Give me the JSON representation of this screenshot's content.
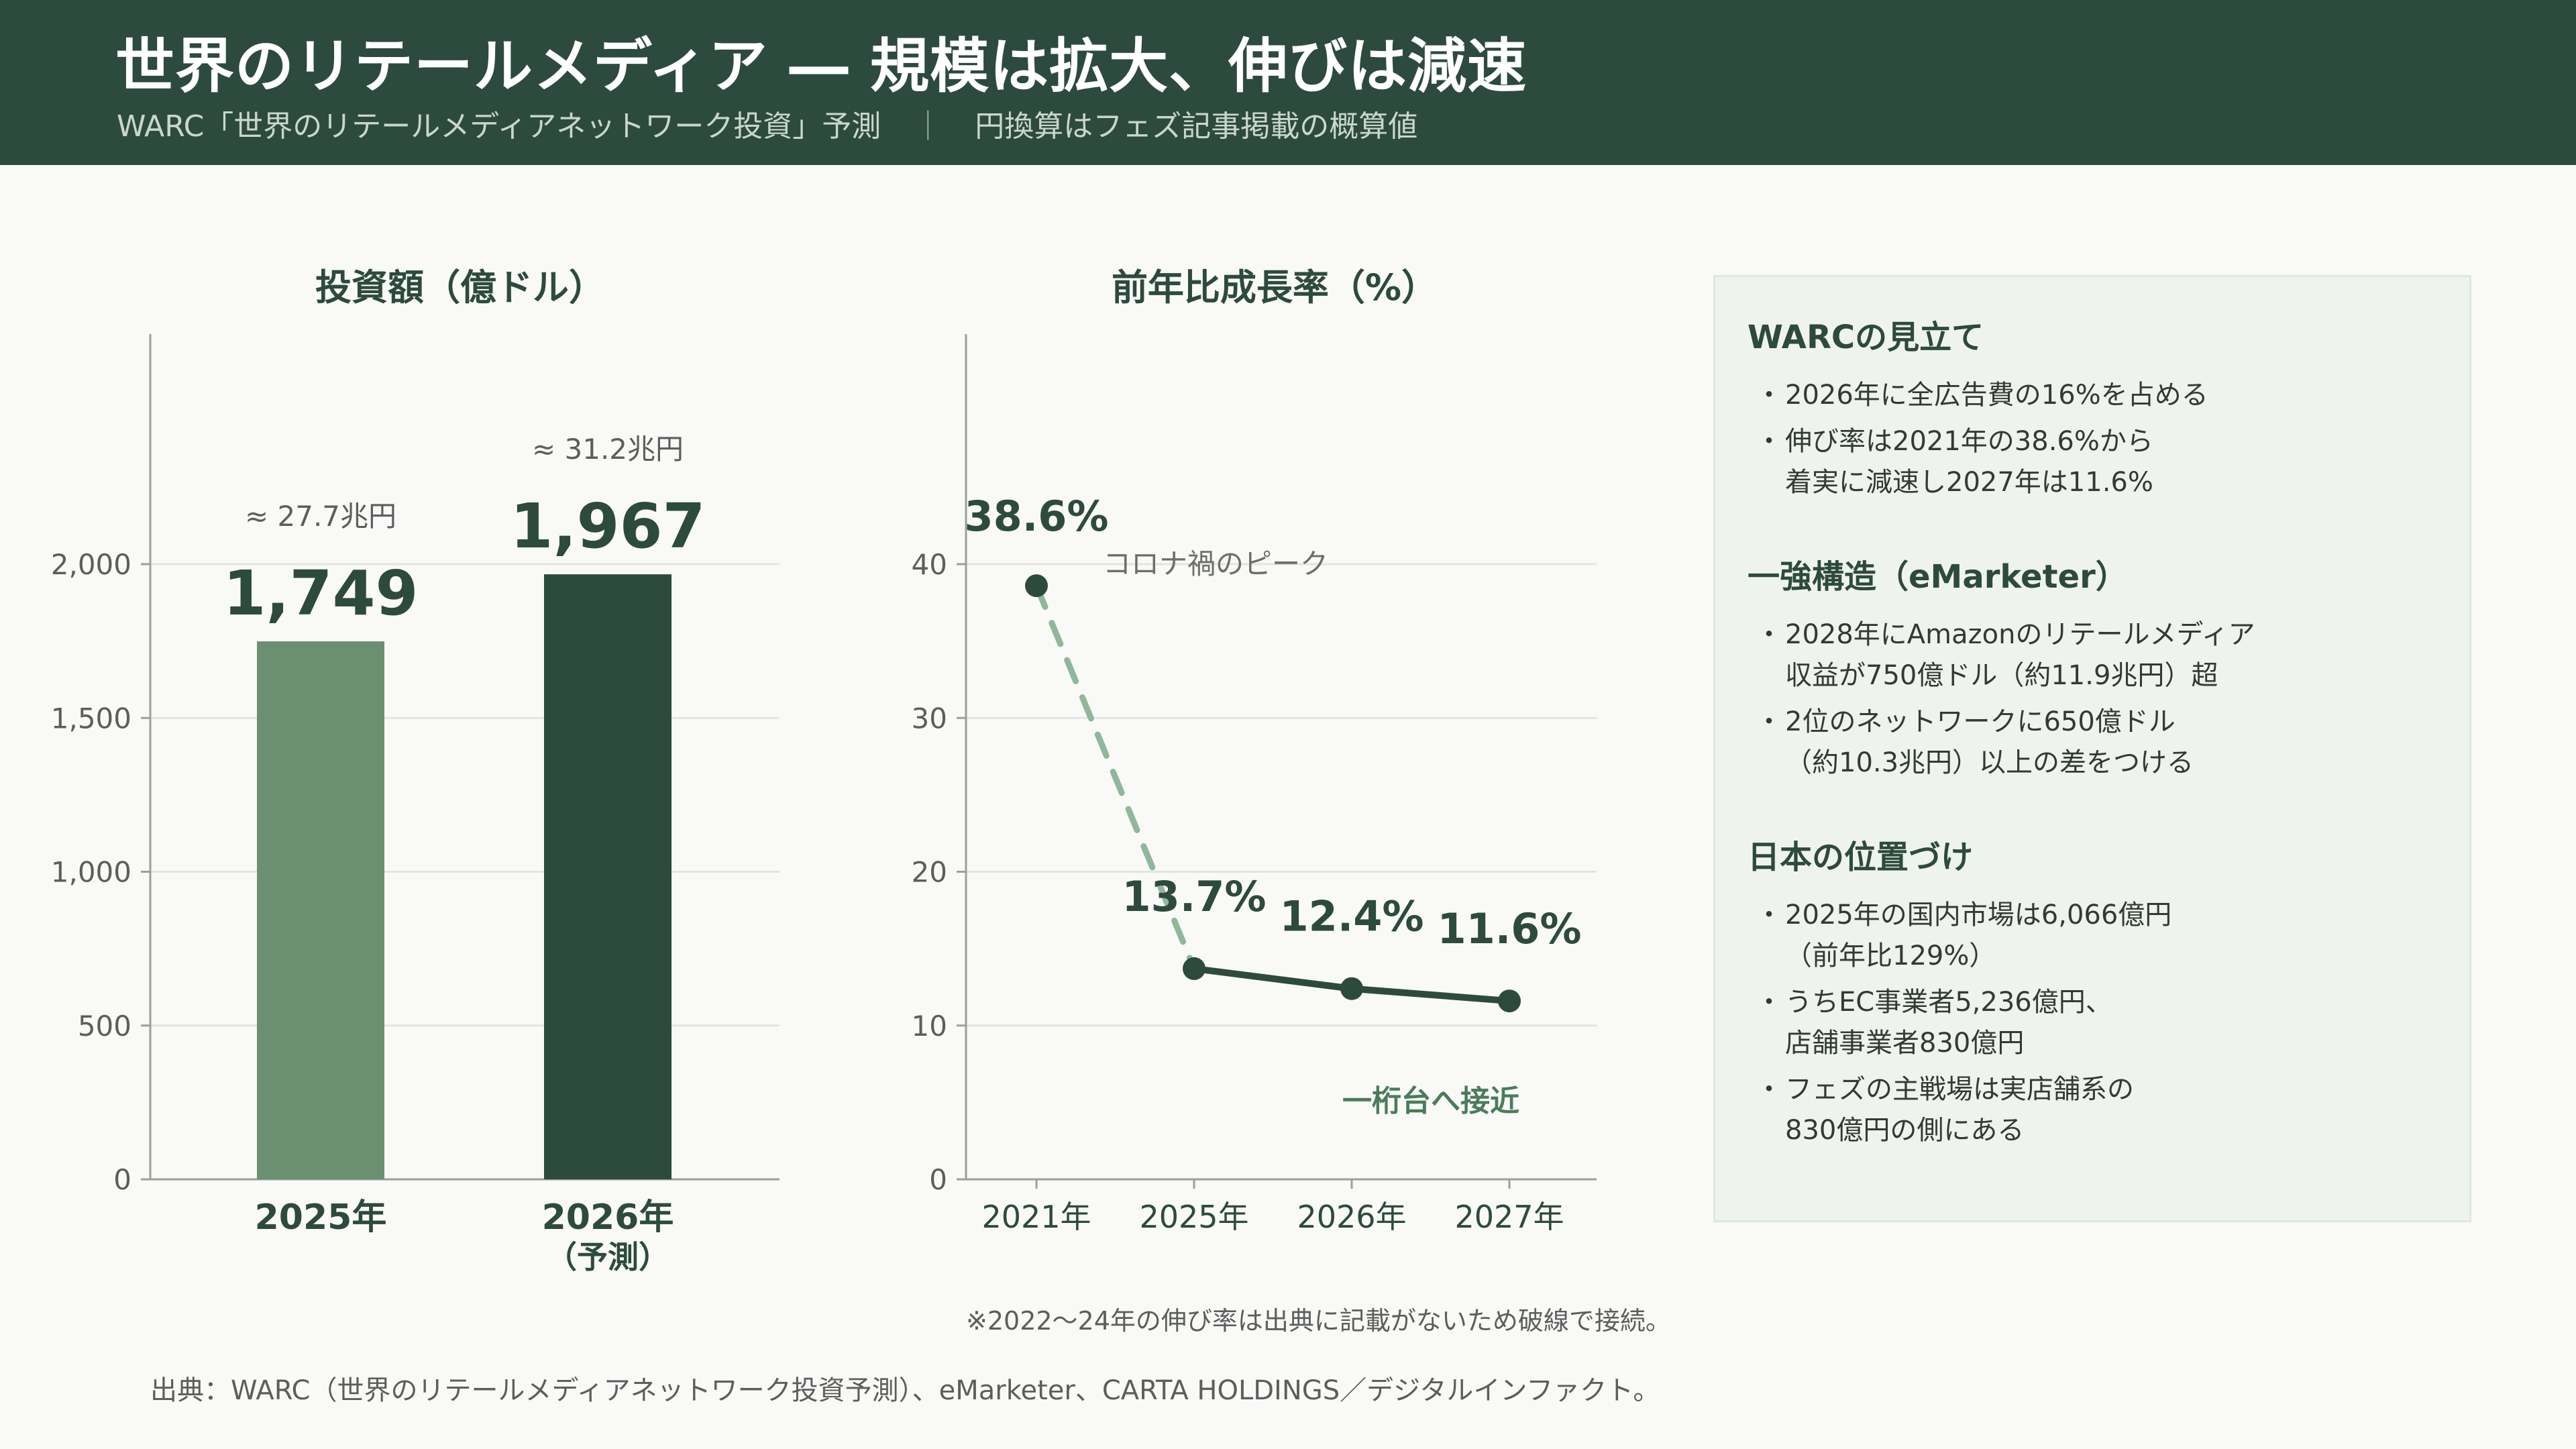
{
  "header": {
    "title": "世界のリテールメディア ― 規模は拡大、伸びは減速",
    "subtitle_left": "WARC「世界のリテールメディアネットワーク投資」予測",
    "subtitle_sep": "｜",
    "subtitle_right": "円換算はフェズ記事掲載の概算値"
  },
  "colors": {
    "header_bg": "#2d4a3e",
    "bar_2025": "#6b8f71",
    "bar_2026": "#2d4a3e",
    "line_solid": "#2d4a3e",
    "line_dashed": "#8fb79a",
    "accent_text": "#4a7c59",
    "panel_bg": "#eff3ef"
  },
  "chart_data": [
    {
      "type": "bar",
      "title": "投資額（億ドル）",
      "categories": [
        "2025年",
        "2026年"
      ],
      "category_sublabels": [
        "",
        "（予測）"
      ],
      "values": [
        1749,
        1967
      ],
      "value_labels": [
        "1,749",
        "1,967"
      ],
      "yen_labels": [
        "≈ 27.7兆円",
        "≈ 31.2兆円"
      ],
      "ylim": [
        0,
        2000
      ],
      "yticks": [
        0,
        500,
        1000,
        1500,
        2000
      ],
      "ytick_labels": [
        "0",
        "500",
        "1,000",
        "1,500",
        "2,000"
      ],
      "grid": true
    },
    {
      "type": "line",
      "title": "前年比成長率（%）",
      "x": [
        "2021年",
        "2025年",
        "2026年",
        "2027年"
      ],
      "values": [
        38.6,
        13.7,
        12.4,
        11.6
      ],
      "value_labels": [
        "38.6%",
        "13.7%",
        "12.4%",
        "11.6%"
      ],
      "segment_styles": [
        "dashed",
        "solid",
        "solid"
      ],
      "ylim": [
        0,
        40
      ],
      "yticks": [
        0,
        10,
        20,
        30,
        40
      ],
      "ytick_labels": [
        "0",
        "10",
        "20",
        "30",
        "40"
      ],
      "grid": true,
      "annotations": [
        "コロナ禍のピーク",
        "一桁台へ接近"
      ]
    }
  ],
  "panel": {
    "sections": [
      {
        "title": "WARCの見立て",
        "items": [
          [
            "2026年に全広告費の16%を占める"
          ],
          [
            "伸び率は2021年の38.6%から",
            "着実に減速し2027年は11.6%"
          ]
        ]
      },
      {
        "title": "一強構造（eMarketer）",
        "items": [
          [
            "2028年にAmazonのリテールメディア",
            "収益が750億ドル（約11.9兆円）超"
          ],
          [
            "2位のネットワークに650億ドル",
            "（約10.3兆円）以上の差をつける"
          ]
        ]
      },
      {
        "title": "日本の位置づけ",
        "items": [
          [
            "2025年の国内市場は6,066億円",
            "（前年比129%）"
          ],
          [
            "うちEC事業者5,236億円、",
            "店舗事業者830億円"
          ],
          [
            "フェズの主戦場は実店舗系の",
            "830億円の側にある"
          ]
        ]
      }
    ]
  },
  "footer": {
    "note": "※2022〜24年の伸び率は出典に記載がないため破線で接続。",
    "source": "出典：WARC（世界のリテールメディアネットワーク投資予測）、eMarketer、CARTA HOLDINGS／デジタルインファクト。"
  }
}
